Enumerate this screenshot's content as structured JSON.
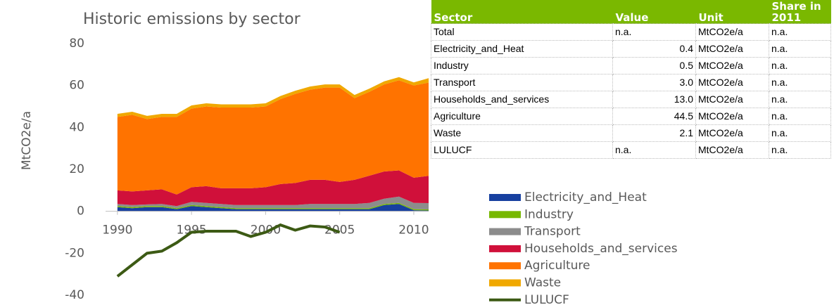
{
  "chart_data": {
    "type": "stacked-area",
    "title": "Historic emissions by sector",
    "y_label": "MtCO2e/a",
    "x": [
      1990,
      1991,
      1992,
      1993,
      1994,
      1995,
      1996,
      1997,
      1998,
      1999,
      2000,
      2001,
      2002,
      2003,
      2004,
      2005,
      2006,
      2007,
      2008,
      2009,
      2010,
      2011
    ],
    "xlim": [
      1989.2,
      2011
    ],
    "xticks": [
      1990,
      1995,
      2000,
      2005,
      2010
    ],
    "ylim": [
      -40,
      80
    ],
    "yticks": [
      -40,
      -20,
      0,
      20,
      40,
      60,
      80
    ],
    "grid": false,
    "series": [
      {
        "name": "Electricity_and_Heat",
        "color": "#1740a0",
        "values": [
          2,
          1.5,
          2,
          2,
          1,
          2.5,
          2,
          1.5,
          1,
          1,
          1,
          1,
          1,
          1,
          1,
          1,
          1,
          1,
          3,
          3.5,
          0.5,
          0.4
        ]
      },
      {
        "name": "Industry",
        "color": "#77b800",
        "values": [
          0.5,
          0.5,
          0.5,
          0.5,
          0.5,
          0.5,
          0.5,
          0.5,
          0.5,
          0.5,
          0.5,
          0.5,
          0.5,
          0.5,
          0.5,
          0.5,
          0.5,
          0.5,
          0.5,
          0.5,
          0.5,
          0.5
        ]
      },
      {
        "name": "Transport",
        "color": "#8c8c8c",
        "values": [
          1,
          1,
          0.8,
          1,
          1,
          1.5,
          1.5,
          1.5,
          1.5,
          1.5,
          1.5,
          1.5,
          1.5,
          2,
          2,
          2,
          2,
          2.5,
          2.5,
          3,
          3,
          3.0
        ]
      },
      {
        "name": "Households_and_services",
        "color": "#d0103a",
        "values": [
          6.5,
          6.5,
          6.7,
          7,
          5.5,
          7,
          8,
          7.5,
          8,
          8,
          8.5,
          10,
          10.5,
          11.5,
          11.5,
          10.5,
          11.5,
          13,
          13,
          12.5,
          12,
          13.0
        ]
      },
      {
        "name": "Agriculture",
        "color": "#ff7300",
        "values": [
          35,
          36.5,
          34,
          34.5,
          37,
          37.5,
          38,
          38.5,
          38.5,
          38.5,
          38.5,
          40.5,
          42.5,
          43,
          44,
          45,
          39,
          40,
          41.5,
          43,
          44,
          44.5
        ]
      },
      {
        "name": "Waste",
        "color": "#f0a800",
        "values": [
          1.5,
          1.5,
          1.5,
          1.5,
          1.5,
          1.5,
          1.5,
          1.5,
          1.5,
          1.5,
          1.5,
          1.5,
          1.5,
          1.5,
          1.5,
          1.5,
          1.5,
          1.5,
          1.5,
          1.5,
          1.5,
          2.1
        ]
      },
      {
        "name": "LULUCF",
        "color": "#3c5a14",
        "kind": "line",
        "values": [
          -31,
          -25.5,
          -20,
          -19,
          -15,
          -10,
          -9.5,
          -9.5,
          -9.5,
          -12,
          -10,
          -6.5,
          -9,
          -7,
          -7.5,
          -10,
          null,
          null,
          null,
          null,
          null,
          null
        ]
      }
    ]
  },
  "table": {
    "header": [
      "Sector",
      "Value",
      "Unit",
      "Share in 2011"
    ],
    "rows": [
      [
        "Total",
        "n.a.",
        "MtCO2e/a",
        "n.a."
      ],
      [
        "Electricity_and_Heat",
        "0.4",
        "MtCO2e/a",
        "n.a."
      ],
      [
        "Industry",
        "0.5",
        "MtCO2e/a",
        "n.a."
      ],
      [
        "Transport",
        "3.0",
        "MtCO2e/a",
        "n.a."
      ],
      [
        "Households_and_services",
        "13.0",
        "MtCO2e/a",
        "n.a."
      ],
      [
        "Agriculture",
        "44.5",
        "MtCO2e/a",
        "n.a."
      ],
      [
        "Waste",
        "2.1",
        "MtCO2e/a",
        "n.a."
      ],
      [
        "LULUCF",
        "n.a.",
        "MtCO2e/a",
        "n.a."
      ]
    ]
  }
}
